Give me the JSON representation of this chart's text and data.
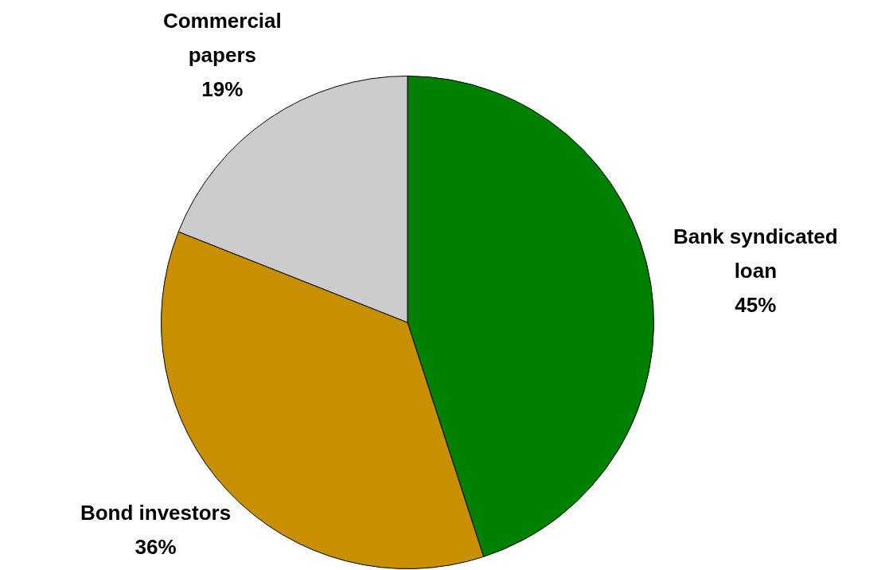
{
  "chart_data": {
    "type": "pie",
    "categories": [
      "Bank syndicated\nloan",
      "Bond investors",
      "Commercial\npapers"
    ],
    "values": [
      45,
      36,
      19
    ],
    "colors": [
      "#008000",
      "#c89000",
      "#cccccc"
    ],
    "value_labels": [
      "45%",
      "36%",
      "19%"
    ],
    "legend": false
  }
}
